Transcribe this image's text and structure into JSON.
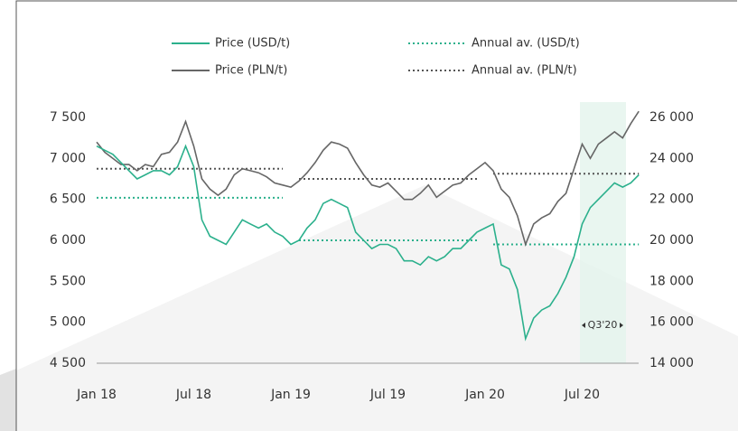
{
  "chart_data": {
    "type": "line",
    "categories": [
      "Jan 18",
      null,
      null,
      null,
      null,
      null,
      null,
      null,
      null,
      null,
      null,
      null,
      "Jul 18",
      null,
      null,
      null,
      null,
      null,
      null,
      null,
      null,
      null,
      null,
      null,
      "Jan 19",
      null,
      null,
      null,
      null,
      null,
      null,
      null,
      null,
      null,
      null,
      null,
      "Jul 19",
      null,
      null,
      null,
      null,
      null,
      null,
      null,
      null,
      null,
      null,
      null,
      "Jan 20",
      null,
      null,
      null,
      null,
      null,
      null,
      null,
      null,
      null,
      null,
      null,
      "Jul 20",
      null,
      null,
      null,
      null,
      null,
      null,
      null
    ],
    "series": [
      {
        "name": "Price (USD/t)",
        "color": "#2bb08c",
        "line_style": "solid",
        "axis": "y",
        "values": [
          7150,
          7100,
          7050,
          6950,
          6850,
          6750,
          6800,
          6850,
          6850,
          6800,
          6900,
          7150,
          6900,
          6250,
          6050,
          6000,
          5950,
          6100,
          6250,
          6200,
          6150,
          6200,
          6100,
          6050,
          5950,
          6000,
          6150,
          6250,
          6450,
          6500,
          6450,
          6400,
          6100,
          6000,
          5900,
          5950,
          5950,
          5900,
          5750,
          5750,
          5700,
          5800,
          5750,
          5800,
          5900,
          5900,
          6000,
          6100,
          6150,
          6200,
          5700,
          5650,
          5400,
          4800,
          5050,
          5150,
          5200,
          5350,
          5550,
          5800,
          6200,
          6400,
          6500,
          6600,
          6700,
          6650,
          6700,
          6800
        ]
      },
      {
        "name": "Price (PLN/t)",
        "color": "#666666",
        "line_style": "solid",
        "axis": "y2",
        "values": [
          24800,
          24300,
          24000,
          23700,
          23700,
          23400,
          23700,
          23600,
          24200,
          24300,
          24800,
          25800,
          24600,
          23000,
          22500,
          22200,
          22500,
          23200,
          23500,
          23400,
          23300,
          23100,
          22800,
          22700,
          22600,
          22900,
          23300,
          23800,
          24400,
          24800,
          24700,
          24500,
          23800,
          23200,
          22700,
          22600,
          22800,
          22400,
          22000,
          22000,
          22300,
          22700,
          22100,
          22400,
          22700,
          22800,
          23200,
          23500,
          23800,
          23400,
          22500,
          22100,
          21200,
          19800,
          20800,
          21100,
          21300,
          21900,
          22300,
          23500,
          24700,
          24000,
          24700,
          25000,
          25300,
          25000,
          25700,
          26300
        ]
      },
      {
        "name": "Annual av. (USD/t)",
        "color": "#2bb08c",
        "line_style": "dotted",
        "axis": "y",
        "values": [
          6520,
          6520,
          6520,
          6520,
          6520,
          6520,
          6520,
          6520,
          6520,
          6520,
          6520,
          6520,
          6520,
          6520,
          6520,
          6520,
          6520,
          6520,
          6520,
          6520,
          6520,
          6520,
          6520,
          6520,
          null,
          6000,
          6000,
          6000,
          6000,
          6000,
          6000,
          6000,
          6000,
          6000,
          6000,
          6000,
          6000,
          6000,
          6000,
          6000,
          6000,
          6000,
          6000,
          6000,
          6000,
          6000,
          6000,
          6000,
          null,
          5950,
          5950,
          5950,
          5950,
          5950,
          5950,
          5950,
          5950,
          5950,
          5950,
          5950,
          5950,
          5950,
          5950,
          5950,
          5950,
          5950,
          5950,
          5950
        ]
      },
      {
        "name": "Annual av. (PLN/t)",
        "color": "#555555",
        "line_style": "dotted",
        "axis": "y2",
        "values": [
          23500,
          23500,
          23500,
          23500,
          23500,
          23500,
          23500,
          23500,
          23500,
          23500,
          23500,
          23500,
          23500,
          23500,
          23500,
          23500,
          23500,
          23500,
          23500,
          23500,
          23500,
          23500,
          23500,
          23500,
          null,
          23000,
          23000,
          23000,
          23000,
          23000,
          23000,
          23000,
          23000,
          23000,
          23000,
          23000,
          23000,
          23000,
          23000,
          23000,
          23000,
          23000,
          23000,
          23000,
          23000,
          23000,
          23000,
          23000,
          null,
          23250,
          23250,
          23250,
          23250,
          23250,
          23250,
          23250,
          23250,
          23250,
          23250,
          23250,
          23250,
          23250,
          23250,
          23250,
          23250,
          23250,
          23250,
          23250
        ]
      }
    ],
    "ylim": [
      4500,
      7800
    ],
    "yticks": [
      {
        "value": 4500,
        "label": "4 500"
      },
      {
        "value": 5000,
        "label": "5 000"
      },
      {
        "value": 5500,
        "label": "5 500"
      },
      {
        "value": 6000,
        "label": "6 000"
      },
      {
        "value": 6500,
        "label": "6 500"
      },
      {
        "value": 7000,
        "label": "7 000"
      },
      {
        "value": 7500,
        "label": "7 500"
      }
    ],
    "y2lim": [
      14000,
      27200
    ],
    "y2ticks": [
      {
        "value": 14000,
        "label": "14 000"
      },
      {
        "value": 16000,
        "label": "16 000"
      },
      {
        "value": 18000,
        "label": "18 000"
      },
      {
        "value": 20000,
        "label": "20 000"
      },
      {
        "value": 22000,
        "label": "22 000"
      },
      {
        "value": 24000,
        "label": "24 000"
      },
      {
        "value": 26000,
        "label": "26 000"
      }
    ],
    "annotation": "Q3'20",
    "legend": "top"
  }
}
